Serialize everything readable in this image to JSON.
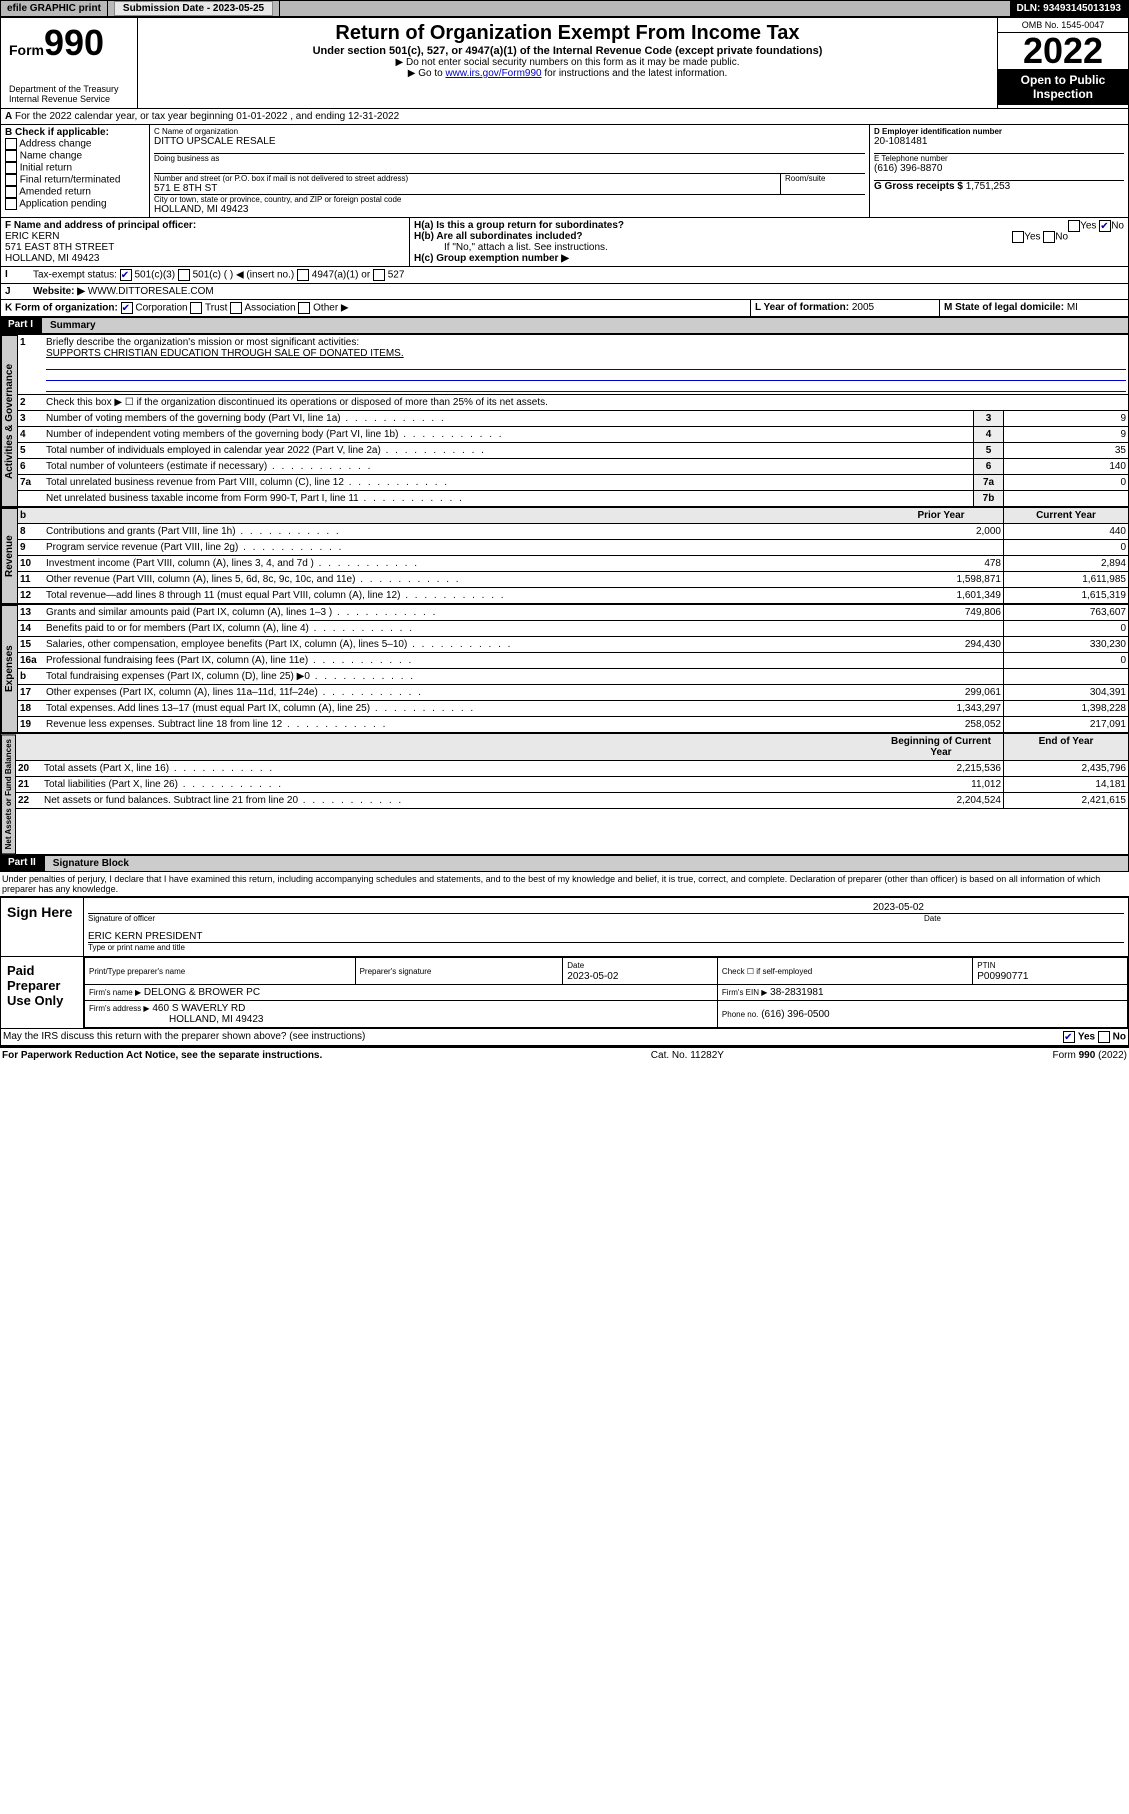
{
  "header": {
    "efile": "efile GRAPHIC print",
    "submission_label": "Submission Date - 2023-05-25",
    "dln": "DLN: 93493145013193"
  },
  "top": {
    "form_word": "Form",
    "form_num": "990",
    "dept": "Department of the Treasury",
    "irs": "Internal Revenue Service",
    "title": "Return of Organization Exempt From Income Tax",
    "subtitle": "Under section 501(c), 527, or 4947(a)(1) of the Internal Revenue Code (except private foundations)",
    "note1": "▶ Do not enter social security numbers on this form as it may be made public.",
    "note2_pre": "▶ Go to ",
    "note2_link": "www.irs.gov/Form990",
    "note2_post": " for instructions and the latest information.",
    "omb": "OMB No. 1545-0047",
    "year": "2022",
    "public": "Open to Public Inspection"
  },
  "A": {
    "line": "For the 2022 calendar year, or tax year beginning 01-01-2022   , and ending 12-31-2022"
  },
  "B": {
    "label": "B Check if applicable:",
    "items": [
      "Address change",
      "Name change",
      "Initial return",
      "Final return/terminated",
      "Amended return",
      "Application pending"
    ]
  },
  "C": {
    "name_lbl": "C Name of organization",
    "name": "DITTO UPSCALE RESALE",
    "dba_lbl": "Doing business as",
    "addr_lbl": "Number and street (or P.O. box if mail is not delivered to street address)",
    "room_lbl": "Room/suite",
    "addr": "571 E 8TH ST",
    "city_lbl": "City or town, state or province, country, and ZIP or foreign postal code",
    "city": "HOLLAND, MI  49423"
  },
  "D": {
    "lbl": "D Employer identification number",
    "val": "20-1081481"
  },
  "E": {
    "lbl": "E Telephone number",
    "val": "(616) 396-8870"
  },
  "G": {
    "lbl": "G Gross receipts $",
    "val": "1,751,253"
  },
  "F": {
    "lbl": "F  Name and address of principal officer:",
    "name": "ERIC KERN",
    "addr": "571 EAST 8TH STREET",
    "city": "HOLLAND, MI  49423"
  },
  "H": {
    "a": "H(a)  Is this a group return for subordinates?",
    "b": "H(b)  Are all subordinates included?",
    "b_note": "If \"No,\" attach a list. See instructions.",
    "c": "H(c)  Group exemption number ▶",
    "yes": "Yes",
    "no": "No"
  },
  "I": {
    "lbl": "Tax-exempt status:",
    "o1": "501(c)(3)",
    "o2": "501(c) (  ) ◀ (insert no.)",
    "o3": "4947(a)(1) or",
    "o4": "527"
  },
  "J": {
    "lbl": "Website: ▶",
    "val": "WWW.DITTORESALE.COM"
  },
  "K": {
    "lbl": "K Form of organization:",
    "o1": "Corporation",
    "o2": "Trust",
    "o3": "Association",
    "o4": "Other ▶"
  },
  "L": {
    "lbl": "L Year of formation:",
    "val": "2005"
  },
  "M": {
    "lbl": "M State of legal domicile:",
    "val": "MI"
  },
  "part1": {
    "hdr": "Part I",
    "title": "Summary",
    "side1": "Activities & Governance",
    "side2": "Revenue",
    "side3": "Expenses",
    "side4": "Net Assets or Fund Balances",
    "l1": "Briefly describe the organization's mission or most significant activities:",
    "l1v": "SUPPORTS CHRISTIAN EDUCATION THROUGH SALE OF DONATED ITEMS.",
    "l2": "Check this box ▶ ☐  if the organization discontinued its operations or disposed of more than 25% of its net assets.",
    "prior": "Prior Year",
    "curr": "Current Year",
    "beg": "Beginning of Current Year",
    "end": "End of Year",
    "rows_a": [
      {
        "n": "3",
        "t": "Number of voting members of the governing body (Part VI, line 1a)",
        "b": "3",
        "v": "9"
      },
      {
        "n": "4",
        "t": "Number of independent voting members of the governing body (Part VI, line 1b)",
        "b": "4",
        "v": "9"
      },
      {
        "n": "5",
        "t": "Total number of individuals employed in calendar year 2022 (Part V, line 2a)",
        "b": "5",
        "v": "35"
      },
      {
        "n": "6",
        "t": "Total number of volunteers (estimate if necessary)",
        "b": "6",
        "v": "140"
      },
      {
        "n": "7a",
        "t": "Total unrelated business revenue from Part VIII, column (C), line 12",
        "b": "7a",
        "v": "0"
      },
      {
        "n": "",
        "t": "Net unrelated business taxable income from Form 990-T, Part I, line 11",
        "b": "7b",
        "v": ""
      }
    ],
    "rows_r": [
      {
        "n": "8",
        "t": "Contributions and grants (Part VIII, line 1h)",
        "p": "2,000",
        "c": "440"
      },
      {
        "n": "9",
        "t": "Program service revenue (Part VIII, line 2g)",
        "p": "",
        "c": "0"
      },
      {
        "n": "10",
        "t": "Investment income (Part VIII, column (A), lines 3, 4, and 7d )",
        "p": "478",
        "c": "2,894"
      },
      {
        "n": "11",
        "t": "Other revenue (Part VIII, column (A), lines 5, 6d, 8c, 9c, 10c, and 11e)",
        "p": "1,598,871",
        "c": "1,611,985"
      },
      {
        "n": "12",
        "t": "Total revenue—add lines 8 through 11 (must equal Part VIII, column (A), line 12)",
        "p": "1,601,349",
        "c": "1,615,319"
      }
    ],
    "rows_e": [
      {
        "n": "13",
        "t": "Grants and similar amounts paid (Part IX, column (A), lines 1–3 )",
        "p": "749,806",
        "c": "763,607"
      },
      {
        "n": "14",
        "t": "Benefits paid to or for members (Part IX, column (A), line 4)",
        "p": "",
        "c": "0"
      },
      {
        "n": "15",
        "t": "Salaries, other compensation, employee benefits (Part IX, column (A), lines 5–10)",
        "p": "294,430",
        "c": "330,230"
      },
      {
        "n": "16a",
        "t": "Professional fundraising fees (Part IX, column (A), line 11e)",
        "p": "",
        "c": "0"
      },
      {
        "n": "b",
        "t": "Total fundraising expenses (Part IX, column (D), line 25) ▶0",
        "p": "",
        "c": ""
      },
      {
        "n": "17",
        "t": "Other expenses (Part IX, column (A), lines 11a–11d, 11f–24e)",
        "p": "299,061",
        "c": "304,391"
      },
      {
        "n": "18",
        "t": "Total expenses. Add lines 13–17 (must equal Part IX, column (A), line 25)",
        "p": "1,343,297",
        "c": "1,398,228"
      },
      {
        "n": "19",
        "t": "Revenue less expenses. Subtract line 18 from line 12",
        "p": "258,052",
        "c": "217,091"
      }
    ],
    "rows_n": [
      {
        "n": "20",
        "t": "Total assets (Part X, line 16)",
        "p": "2,215,536",
        "c": "2,435,796"
      },
      {
        "n": "21",
        "t": "Total liabilities (Part X, line 26)",
        "p": "11,012",
        "c": "14,181"
      },
      {
        "n": "22",
        "t": "Net assets or fund balances. Subtract line 21 from line 20",
        "p": "2,204,524",
        "c": "2,421,615"
      }
    ]
  },
  "part2": {
    "hdr": "Part II",
    "title": "Signature Block",
    "decl": "Under penalties of perjury, I declare that I have examined this return, including accompanying schedules and statements, and to the best of my knowledge and belief, it is true, correct, and complete. Declaration of preparer (other than officer) is based on all information of which preparer has any knowledge.",
    "sign": "Sign Here",
    "sig_lbl": "Signature of officer",
    "date_lbl": "Date",
    "date": "2023-05-02",
    "officer": "ERIC KERN  PRESIDENT",
    "type_lbl": "Type or print name and title",
    "paid": "Paid Preparer Use Only",
    "pp_name_lbl": "Print/Type preparer's name",
    "pp_sig_lbl": "Preparer's signature",
    "pp_date_lbl": "Date",
    "pp_date": "2023-05-02",
    "pp_check": "Check ☐ if self-employed",
    "ptin_lbl": "PTIN",
    "ptin": "P00990771",
    "firm_name_lbl": "Firm's name    ▶",
    "firm_name": "DELONG & BROWER PC",
    "firm_ein_lbl": "Firm's EIN ▶",
    "firm_ein": "38-2831981",
    "firm_addr_lbl": "Firm's address ▶",
    "firm_addr": "460 S WAVERLY RD",
    "firm_city": "HOLLAND, MI  49423",
    "phone_lbl": "Phone no.",
    "phone": "(616) 396-0500",
    "discuss": "May the IRS discuss this return with the preparer shown above? (see instructions)",
    "pra": "For Paperwork Reduction Act Notice, see the separate instructions.",
    "cat": "Cat. No. 11282Y",
    "form": "Form 990 (2022)"
  }
}
